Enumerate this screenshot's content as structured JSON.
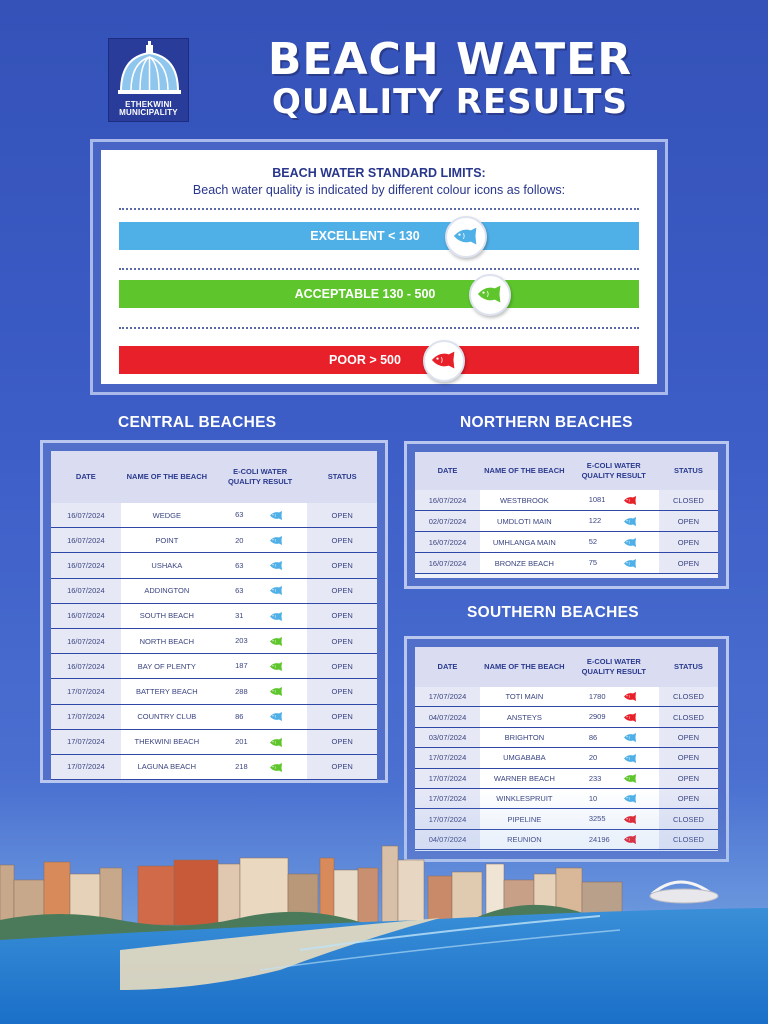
{
  "header": {
    "logo_line1": "ETHEKWINI",
    "logo_line2": "MUNICIPALITY",
    "title_line1": "BEACH WATER",
    "title_line2": "QUALITY RESULTS"
  },
  "legend": {
    "title": "BEACH WATER STANDARD LIMITS:",
    "subtitle": "Beach water quality is indicated by different colour icons as follows:",
    "bands": [
      {
        "label": "EXCELLENT < 130",
        "color": "#4fb0e8",
        "icon": "fish-icon-blue"
      },
      {
        "label": "ACCEPTABLE 130 - 500",
        "color": "#5ec62c",
        "icon": "fish-icon-green"
      },
      {
        "label": "POOR > 500",
        "color": "#e8202a",
        "icon": "fish-icon-red"
      }
    ]
  },
  "colors": {
    "excellent": "#4fb0e8",
    "acceptable": "#5ec62c",
    "poor": "#e8202a"
  },
  "columns": {
    "date": "DATE",
    "name": "NAME OF THE BEACH",
    "result": "E-COLI WATER QUALITY RESULT",
    "status": "STATUS"
  },
  "central": {
    "title": "CENTRAL BEACHES",
    "rows": [
      {
        "date": "16/07/2024",
        "name": "WEDGE",
        "result": "63",
        "quality": "excellent",
        "status": "OPEN"
      },
      {
        "date": "16/07/2024",
        "name": "POINT",
        "result": "20",
        "quality": "excellent",
        "status": "OPEN"
      },
      {
        "date": "16/07/2024",
        "name": "USHAKA",
        "result": "63",
        "quality": "excellent",
        "status": "OPEN"
      },
      {
        "date": "16/07/2024",
        "name": "ADDINGTON",
        "result": "63",
        "quality": "excellent",
        "status": "OPEN"
      },
      {
        "date": "16/07/2024",
        "name": "SOUTH BEACH",
        "result": "31",
        "quality": "excellent",
        "status": "OPEN"
      },
      {
        "date": "16/07/2024",
        "name": "NORTH BEACH",
        "result": "203",
        "quality": "acceptable",
        "status": "OPEN"
      },
      {
        "date": "16/07/2024",
        "name": "BAY OF PLENTY",
        "result": "187",
        "quality": "acceptable",
        "status": "OPEN"
      },
      {
        "date": "17/07/2024",
        "name": "BATTERY BEACH",
        "result": "288",
        "quality": "acceptable",
        "status": "OPEN"
      },
      {
        "date": "17/07/2024",
        "name": "COUNTRY CLUB",
        "result": "86",
        "quality": "excellent",
        "status": "OPEN"
      },
      {
        "date": "17/07/2024",
        "name": "THEKWINI BEACH",
        "result": "201",
        "quality": "acceptable",
        "status": "OPEN"
      },
      {
        "date": "17/07/2024",
        "name": "LAGUNA BEACH",
        "result": "218",
        "quality": "acceptable",
        "status": "OPEN"
      }
    ]
  },
  "northern": {
    "title": "NORTHERN BEACHES",
    "rows": [
      {
        "date": "16/07/2024",
        "name": "WESTBROOK",
        "result": "1081",
        "quality": "poor",
        "status": "CLOSED"
      },
      {
        "date": "02/07/2024",
        "name": "UMDLOTI MAIN",
        "result": "122",
        "quality": "excellent",
        "status": "OPEN"
      },
      {
        "date": "16/07/2024",
        "name": "UMHLANGA MAIN",
        "result": "52",
        "quality": "excellent",
        "status": "OPEN"
      },
      {
        "date": "16/07/2024",
        "name": "BRONZE BEACH",
        "result": "75",
        "quality": "excellent",
        "status": "OPEN"
      }
    ]
  },
  "southern": {
    "title": "SOUTHERN BEACHES",
    "rows": [
      {
        "date": "17/07/2024",
        "name": "TOTI MAIN",
        "result": "1780",
        "quality": "poor",
        "status": "CLOSED"
      },
      {
        "date": "04/07/2024",
        "name": "ANSTEYS",
        "result": "2909",
        "quality": "poor",
        "status": "CLOSED"
      },
      {
        "date": "03/07/2024",
        "name": "BRIGHTON",
        "result": "86",
        "quality": "excellent",
        "status": "OPEN"
      },
      {
        "date": "17/07/2024",
        "name": "UMGABABA",
        "result": "20",
        "quality": "excellent",
        "status": "OPEN"
      },
      {
        "date": "17/07/2024",
        "name": "WARNER BEACH",
        "result": "233",
        "quality": "acceptable",
        "status": "OPEN"
      },
      {
        "date": "17/07/2024",
        "name": "WINKLESPRUIT",
        "result": "10",
        "quality": "excellent",
        "status": "OPEN"
      },
      {
        "date": "17/07/2024",
        "name": "PIPELINE",
        "result": "3255",
        "quality": "poor",
        "status": "CLOSED"
      },
      {
        "date": "04/07/2024",
        "name": "REUNION",
        "result": "24196",
        "quality": "poor",
        "status": "CLOSED"
      }
    ]
  }
}
